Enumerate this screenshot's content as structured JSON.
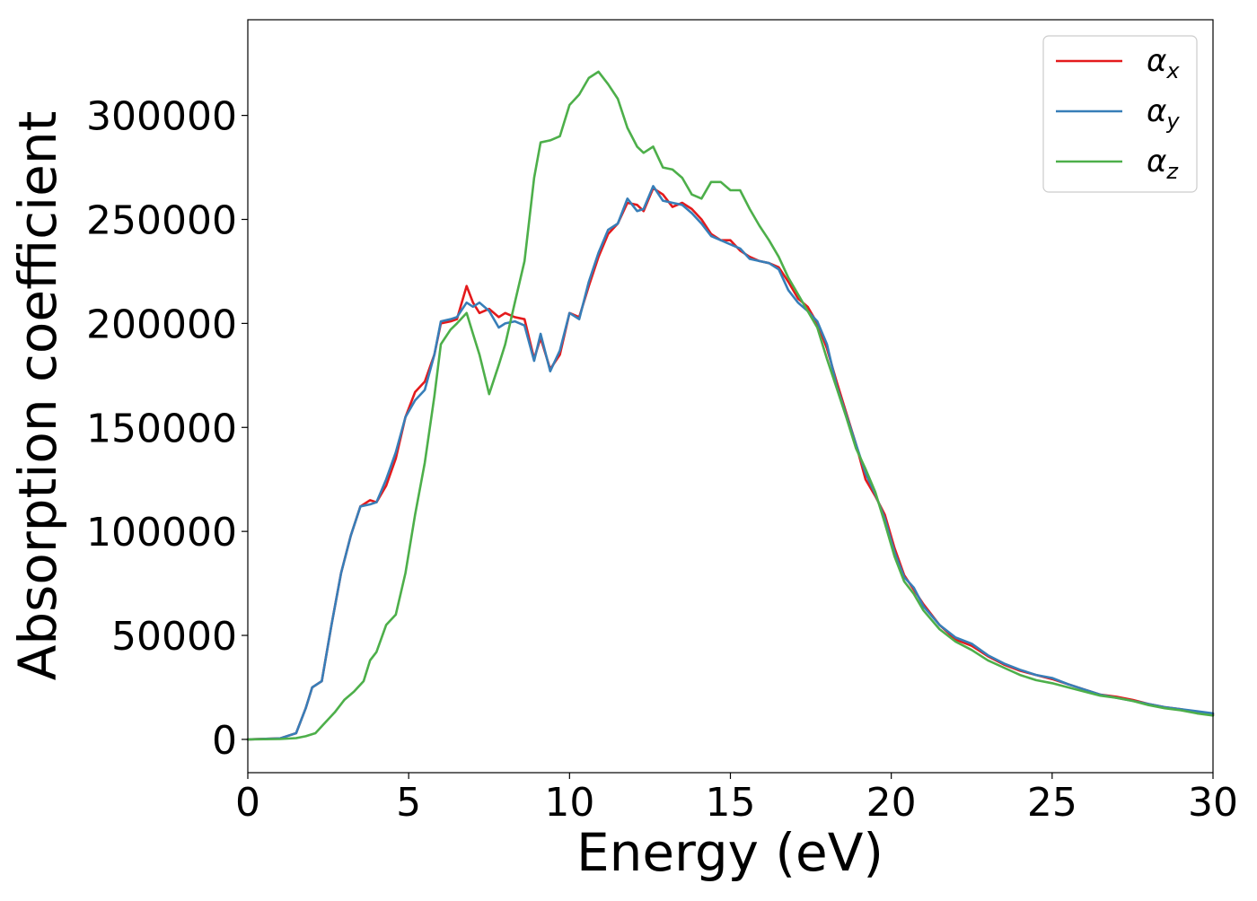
{
  "chart_data": {
    "type": "line",
    "xlabel": "Energy (eV)",
    "ylabel": "Absorption coefficient",
    "xlim": [
      0,
      30
    ],
    "ylim": [
      -16000,
      346000
    ],
    "x_ticks": [
      "0",
      "5",
      "10",
      "15",
      "20",
      "25",
      "30"
    ],
    "y_ticks": [
      "0",
      "50000",
      "100000",
      "150000",
      "200000",
      "250000",
      "300000"
    ],
    "grid": false,
    "legend_position": "top-right",
    "series": [
      {
        "name": "αx",
        "symbol": "α",
        "subscript": "x",
        "color": "#e41a1c",
        "points": [
          [
            0,
            0
          ],
          [
            1.0,
            500
          ],
          [
            1.5,
            3000
          ],
          [
            1.8,
            15000
          ],
          [
            2.0,
            25000
          ],
          [
            2.3,
            28000
          ],
          [
            2.6,
            55000
          ],
          [
            2.9,
            80000
          ],
          [
            3.2,
            98000
          ],
          [
            3.5,
            112000
          ],
          [
            3.8,
            115000
          ],
          [
            4.0,
            114000
          ],
          [
            4.3,
            122000
          ],
          [
            4.6,
            135000
          ],
          [
            4.9,
            155000
          ],
          [
            5.2,
            167000
          ],
          [
            5.5,
            172000
          ],
          [
            5.8,
            185000
          ],
          [
            6.0,
            200000
          ],
          [
            6.3,
            201000
          ],
          [
            6.5,
            202000
          ],
          [
            6.8,
            218000
          ],
          [
            7.0,
            210000
          ],
          [
            7.2,
            205000
          ],
          [
            7.5,
            207000
          ],
          [
            7.8,
            203000
          ],
          [
            8.0,
            205000
          ],
          [
            8.3,
            203000
          ],
          [
            8.6,
            202000
          ],
          [
            8.9,
            183000
          ],
          [
            9.1,
            193000
          ],
          [
            9.4,
            178000
          ],
          [
            9.7,
            185000
          ],
          [
            10.0,
            205000
          ],
          [
            10.3,
            203000
          ],
          [
            10.6,
            218000
          ],
          [
            10.9,
            232000
          ],
          [
            11.2,
            243000
          ],
          [
            11.5,
            248000
          ],
          [
            11.8,
            258000
          ],
          [
            12.1,
            257000
          ],
          [
            12.3,
            254000
          ],
          [
            12.6,
            265000
          ],
          [
            12.9,
            262000
          ],
          [
            13.2,
            256000
          ],
          [
            13.5,
            258000
          ],
          [
            13.8,
            255000
          ],
          [
            14.1,
            250000
          ],
          [
            14.4,
            243000
          ],
          [
            14.7,
            240000
          ],
          [
            15.0,
            240000
          ],
          [
            15.3,
            235000
          ],
          [
            15.6,
            232000
          ],
          [
            15.9,
            230000
          ],
          [
            16.2,
            229000
          ],
          [
            16.5,
            227000
          ],
          [
            16.8,
            220000
          ],
          [
            17.1,
            212000
          ],
          [
            17.4,
            208000
          ],
          [
            17.7,
            200000
          ],
          [
            18.0,
            188000
          ],
          [
            18.3,
            172000
          ],
          [
            18.6,
            157000
          ],
          [
            18.9,
            142000
          ],
          [
            19.2,
            125000
          ],
          [
            19.5,
            117000
          ],
          [
            19.8,
            108000
          ],
          [
            20.1,
            92000
          ],
          [
            20.4,
            79000
          ],
          [
            20.7,
            72000
          ],
          [
            21.0,
            65000
          ],
          [
            21.5,
            55000
          ],
          [
            22.0,
            48000
          ],
          [
            22.5,
            45000
          ],
          [
            23.0,
            40000
          ],
          [
            23.5,
            36000
          ],
          [
            24.0,
            33000
          ],
          [
            24.5,
            31000
          ],
          [
            25.0,
            29000
          ],
          [
            25.5,
            26500
          ],
          [
            26.0,
            24000
          ],
          [
            26.5,
            21500
          ],
          [
            27.0,
            20500
          ],
          [
            27.5,
            19000
          ],
          [
            28.0,
            17000
          ],
          [
            28.5,
            15500
          ],
          [
            29.0,
            14500
          ],
          [
            29.5,
            13000
          ],
          [
            30.0,
            12000
          ]
        ]
      },
      {
        "name": "αy",
        "symbol": "α",
        "subscript": "y",
        "color": "#377eb8",
        "points": [
          [
            0,
            0
          ],
          [
            1.0,
            500
          ],
          [
            1.5,
            3000
          ],
          [
            1.8,
            15000
          ],
          [
            2.0,
            25000
          ],
          [
            2.3,
            28000
          ],
          [
            2.6,
            55000
          ],
          [
            2.9,
            80000
          ],
          [
            3.2,
            98000
          ],
          [
            3.5,
            112000
          ],
          [
            3.8,
            113000
          ],
          [
            4.0,
            114000
          ],
          [
            4.3,
            125000
          ],
          [
            4.6,
            138000
          ],
          [
            4.9,
            155000
          ],
          [
            5.2,
            163000
          ],
          [
            5.5,
            168000
          ],
          [
            5.8,
            185000
          ],
          [
            6.0,
            201000
          ],
          [
            6.3,
            202000
          ],
          [
            6.5,
            203000
          ],
          [
            6.8,
            210000
          ],
          [
            7.0,
            208000
          ],
          [
            7.2,
            210000
          ],
          [
            7.5,
            206000
          ],
          [
            7.8,
            198000
          ],
          [
            8.0,
            200000
          ],
          [
            8.3,
            201000
          ],
          [
            8.6,
            199000
          ],
          [
            8.9,
            182000
          ],
          [
            9.1,
            195000
          ],
          [
            9.4,
            177000
          ],
          [
            9.7,
            187000
          ],
          [
            10.0,
            205000
          ],
          [
            10.3,
            202000
          ],
          [
            10.6,
            220000
          ],
          [
            10.9,
            234000
          ],
          [
            11.2,
            245000
          ],
          [
            11.5,
            248000
          ],
          [
            11.8,
            260000
          ],
          [
            12.1,
            254000
          ],
          [
            12.3,
            255000
          ],
          [
            12.6,
            266000
          ],
          [
            12.9,
            259000
          ],
          [
            13.2,
            258000
          ],
          [
            13.5,
            257000
          ],
          [
            13.8,
            253000
          ],
          [
            14.1,
            248000
          ],
          [
            14.4,
            242000
          ],
          [
            14.7,
            240000
          ],
          [
            15.0,
            238000
          ],
          [
            15.3,
            236000
          ],
          [
            15.6,
            231000
          ],
          [
            15.9,
            230000
          ],
          [
            16.2,
            229000
          ],
          [
            16.5,
            226000
          ],
          [
            16.8,
            216000
          ],
          [
            17.1,
            210000
          ],
          [
            17.4,
            206000
          ],
          [
            17.7,
            201000
          ],
          [
            18.0,
            190000
          ],
          [
            18.3,
            170000
          ],
          [
            18.6,
            156000
          ],
          [
            18.9,
            142000
          ],
          [
            19.2,
            128000
          ],
          [
            19.5,
            118000
          ],
          [
            19.8,
            106000
          ],
          [
            20.1,
            90000
          ],
          [
            20.4,
            78000
          ],
          [
            20.7,
            73000
          ],
          [
            21.0,
            64000
          ],
          [
            21.5,
            55000
          ],
          [
            22.0,
            49000
          ],
          [
            22.5,
            46000
          ],
          [
            23.0,
            40500
          ],
          [
            23.5,
            36500
          ],
          [
            24.0,
            33500
          ],
          [
            24.5,
            31000
          ],
          [
            25.0,
            29500
          ],
          [
            25.5,
            26500
          ],
          [
            26.0,
            24000
          ],
          [
            26.5,
            21500
          ],
          [
            27.0,
            20000
          ],
          [
            27.5,
            18500
          ],
          [
            28.0,
            17000
          ],
          [
            28.5,
            15500
          ],
          [
            29.0,
            14500
          ],
          [
            29.5,
            13500
          ],
          [
            30.0,
            12500
          ]
        ]
      },
      {
        "name": "αz",
        "symbol": "α",
        "subscript": "z",
        "color": "#4daf4a",
        "points": [
          [
            0,
            0
          ],
          [
            1.0,
            200
          ],
          [
            1.5,
            600
          ],
          [
            1.8,
            1500
          ],
          [
            2.1,
            3000
          ],
          [
            2.4,
            8000
          ],
          [
            2.7,
            13000
          ],
          [
            3.0,
            19000
          ],
          [
            3.3,
            23000
          ],
          [
            3.6,
            28000
          ],
          [
            3.8,
            38000
          ],
          [
            4.0,
            42000
          ],
          [
            4.3,
            55000
          ],
          [
            4.6,
            60000
          ],
          [
            4.9,
            80000
          ],
          [
            5.2,
            108000
          ],
          [
            5.5,
            133000
          ],
          [
            5.8,
            165000
          ],
          [
            6.0,
            190000
          ],
          [
            6.3,
            197000
          ],
          [
            6.5,
            200000
          ],
          [
            6.8,
            205000
          ],
          [
            7.0,
            195000
          ],
          [
            7.2,
            185000
          ],
          [
            7.5,
            166000
          ],
          [
            7.8,
            180000
          ],
          [
            8.0,
            190000
          ],
          [
            8.3,
            210000
          ],
          [
            8.6,
            230000
          ],
          [
            8.9,
            270000
          ],
          [
            9.1,
            287000
          ],
          [
            9.4,
            288000
          ],
          [
            9.7,
            290000
          ],
          [
            10.0,
            305000
          ],
          [
            10.3,
            310000
          ],
          [
            10.6,
            318000
          ],
          [
            10.9,
            321000
          ],
          [
            11.2,
            315000
          ],
          [
            11.5,
            308000
          ],
          [
            11.8,
            294000
          ],
          [
            12.1,
            285000
          ],
          [
            12.3,
            282000
          ],
          [
            12.6,
            285000
          ],
          [
            12.9,
            275000
          ],
          [
            13.2,
            274000
          ],
          [
            13.5,
            270000
          ],
          [
            13.8,
            262000
          ],
          [
            14.1,
            260000
          ],
          [
            14.4,
            268000
          ],
          [
            14.7,
            268000
          ],
          [
            15.0,
            264000
          ],
          [
            15.3,
            264000
          ],
          [
            15.6,
            255000
          ],
          [
            15.9,
            247000
          ],
          [
            16.2,
            240000
          ],
          [
            16.5,
            232000
          ],
          [
            16.8,
            222000
          ],
          [
            17.1,
            214000
          ],
          [
            17.4,
            206000
          ],
          [
            17.7,
            198000
          ],
          [
            18.0,
            183000
          ],
          [
            18.3,
            169000
          ],
          [
            18.6,
            155000
          ],
          [
            18.9,
            140000
          ],
          [
            19.2,
            130000
          ],
          [
            19.5,
            119000
          ],
          [
            19.8,
            104000
          ],
          [
            20.1,
            88000
          ],
          [
            20.4,
            76000
          ],
          [
            20.7,
            70000
          ],
          [
            21.0,
            62000
          ],
          [
            21.5,
            53000
          ],
          [
            22.0,
            47000
          ],
          [
            22.5,
            43000
          ],
          [
            23.0,
            38000
          ],
          [
            23.5,
            34500
          ],
          [
            24.0,
            31000
          ],
          [
            24.5,
            28500
          ],
          [
            25.0,
            27000
          ],
          [
            25.5,
            25000
          ],
          [
            26.0,
            23000
          ],
          [
            26.5,
            21000
          ],
          [
            27.0,
            20000
          ],
          [
            27.5,
            18500
          ],
          [
            28.0,
            16500
          ],
          [
            28.5,
            15000
          ],
          [
            29.0,
            14000
          ],
          [
            29.5,
            12500
          ],
          [
            30.0,
            11500
          ]
        ]
      }
    ]
  }
}
